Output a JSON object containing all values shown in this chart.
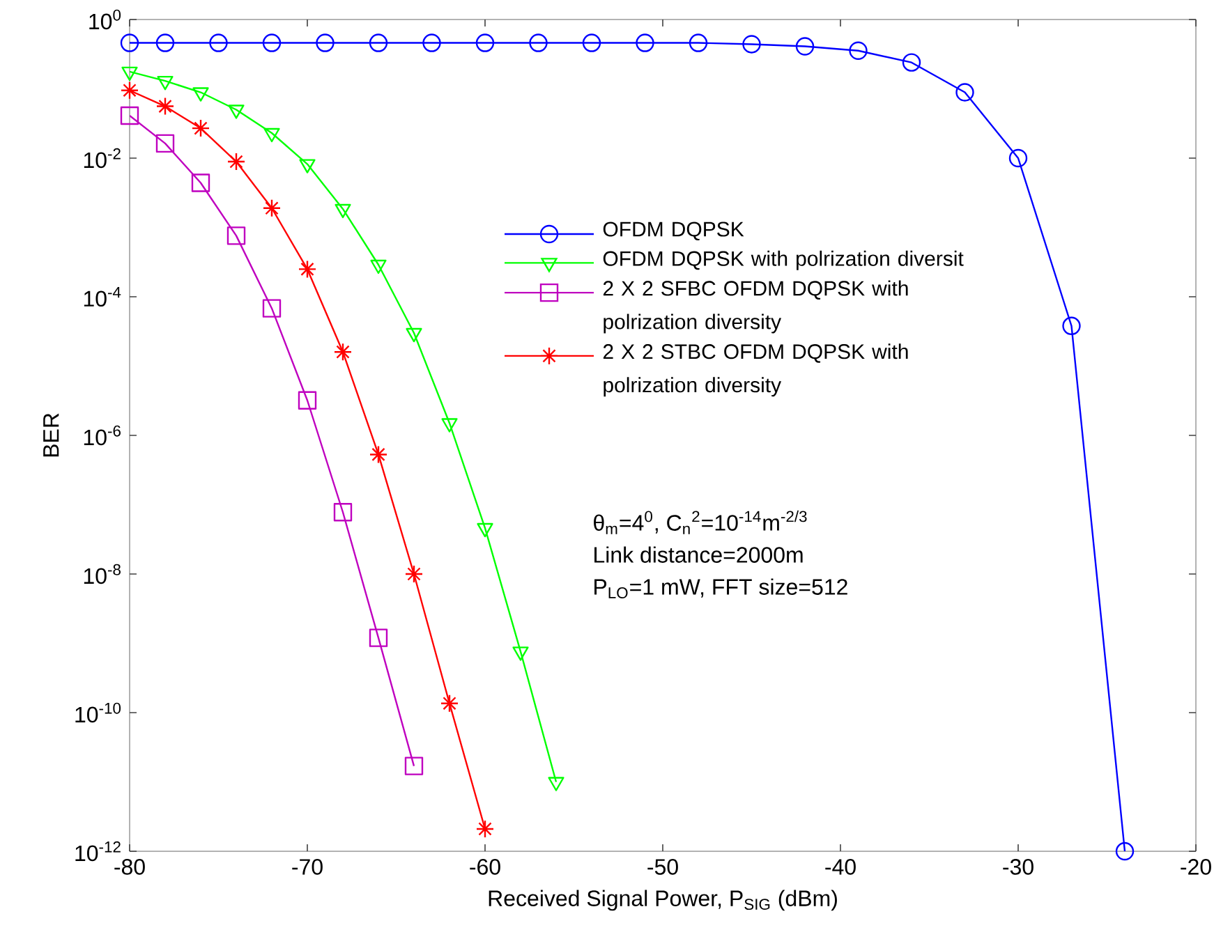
{
  "chart_data": {
    "type": "line",
    "xlabel": "Received Signal Power, P$_{SIG}$ (dBm)",
    "ylabel": "BER",
    "log": "y",
    "xlim": [
      -80,
      -20
    ],
    "xticks": [
      -80,
      -70,
      -60,
      -50,
      -40,
      -30,
      -20
    ],
    "ylim": [
      1e-12,
      1
    ],
    "yticks": [
      {
        "value": 1e-12,
        "label": "10$^{-12}$"
      },
      {
        "value": 1e-10,
        "label": "10$^{-10}$"
      },
      {
        "value": 1e-08,
        "label": "10$^{-8}$"
      },
      {
        "value": 1e-06,
        "label": "10$^{-6}$"
      },
      {
        "value": 0.0001,
        "label": "10$^{-4}$"
      },
      {
        "value": 0.01,
        "label": "10$^{-2}$"
      },
      {
        "value": 1,
        "label": "10$^{0}$"
      }
    ],
    "grid": false,
    "legend": "right",
    "annotations": [
      "θ$_{m}$=4$^{0}$, C$_{n}$$^{2}$=10$^{-14}$m$^{-2/3}$",
      "Link distance=2000m",
      "P$_{LO}$=1 mW, FFT size=512"
    ],
    "series": [
      {
        "name": "OFDM DQPSK",
        "color": "#0000ff",
        "marker": "circle",
        "x": [
          -80,
          -78,
          -75,
          -72,
          -69,
          -66,
          -63,
          -60,
          -57,
          -54,
          -51,
          -48,
          -45,
          -42,
          -39,
          -36,
          -33,
          -30,
          -27,
          -24
        ],
        "values": [
          0.46,
          0.46,
          0.46,
          0.46,
          0.46,
          0.46,
          0.46,
          0.46,
          0.46,
          0.46,
          0.46,
          0.46,
          0.44,
          0.41,
          0.355,
          0.24,
          0.089,
          0.01,
          3.8e-05,
          1e-12
        ]
      },
      {
        "name": "OFDM DQPSK with polrization diversit",
        "color": "#00ff00",
        "marker": "triangle",
        "x": [
          -80,
          -78,
          -76,
          -74,
          -72,
          -70,
          -68,
          -66,
          -64,
          -62,
          -60,
          -58,
          -56
        ],
        "values": [
          0.177,
          0.13,
          0.089,
          0.05,
          0.023,
          0.0082,
          0.00185,
          0.00029,
          3e-05,
          1.5e-06,
          4.6e-08,
          7.6e-10,
          1e-11
        ]
      },
      {
        "name": "2 X 2 SFBC OFDM DQPSK with polrization diversity",
        "color": "#bf00bf",
        "marker": "square",
        "x": [
          -80,
          -78,
          -76,
          -74,
          -72,
          -70,
          -68,
          -66,
          -64
        ],
        "values": [
          0.041,
          0.0163,
          0.0044,
          0.00076,
          6.8e-05,
          3.2e-06,
          7.8e-08,
          1.2e-09,
          1.7e-11
        ]
      },
      {
        "name": "2 X 2 STBC OFDM DQPSK with polrization diversity",
        "color": "#ff0000",
        "marker": "cross",
        "x": [
          -80,
          -78,
          -76,
          -74,
          -72,
          -70,
          -68,
          -66,
          -64,
          -62,
          -60
        ],
        "values": [
          0.095,
          0.056,
          0.027,
          0.0089,
          0.0019,
          0.00025,
          1.6e-05,
          5.3e-07,
          1e-08,
          1.36e-10,
          2.1e-12
        ]
      }
    ]
  }
}
